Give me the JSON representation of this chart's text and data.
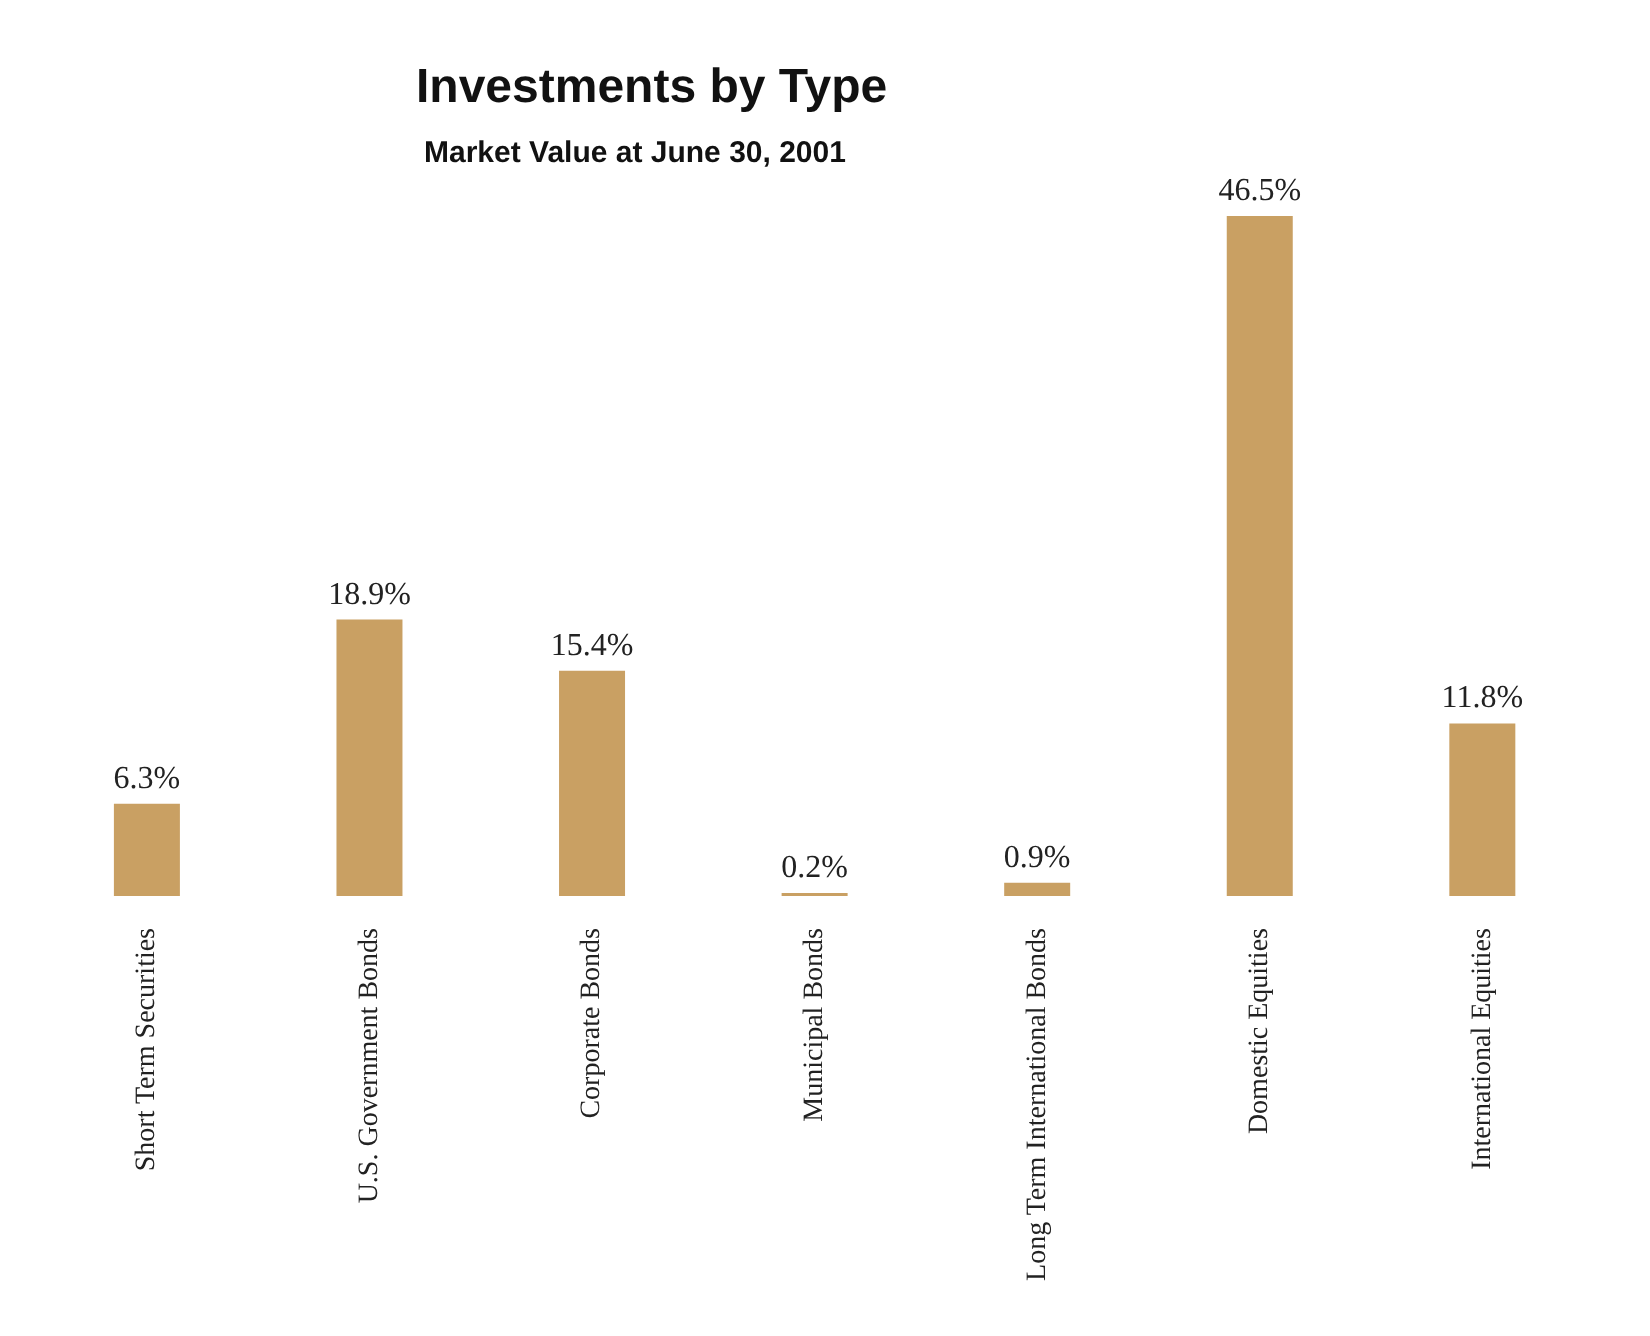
{
  "chart_data": {
    "type": "bar",
    "title": "Investments by Type",
    "subtitle": "Market Value at June 30, 2001",
    "categories": [
      "Short Term Securities",
      "U.S. Government Bonds",
      "Corporate Bonds",
      "Municipal Bonds",
      "Long Term International Bonds",
      "Domestic Equities",
      "International Equities"
    ],
    "values": [
      6.3,
      18.9,
      15.4,
      0.2,
      0.9,
      46.5,
      11.8
    ],
    "value_labels": [
      "6.3%",
      "18.9%",
      "15.4%",
      "0.2%",
      "0.9%",
      "46.5%",
      "11.8%"
    ],
    "color": "#c9a063",
    "grid": false,
    "legend": false
  }
}
